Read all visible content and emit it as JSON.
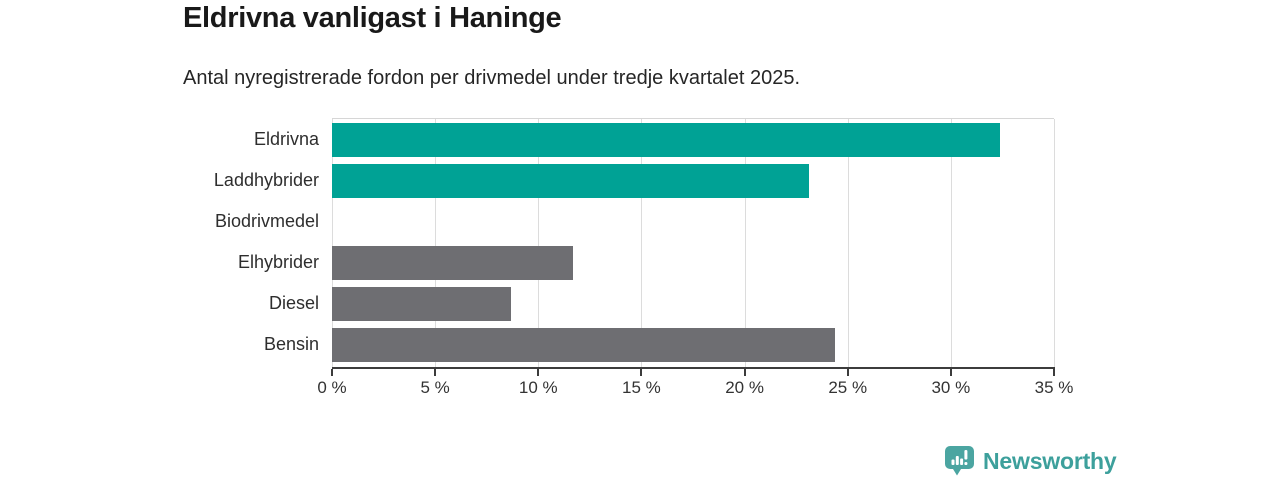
{
  "header": {
    "title": "Eldrivna vanligast i Haninge",
    "subtitle": "Antal nyregistrerade fordon per drivmedel under tredje kvartalet 2025."
  },
  "chart_data": {
    "type": "bar",
    "orientation": "horizontal",
    "title": "Eldrivna vanligast i Haninge",
    "subtitle": "Antal nyregistrerade fordon per drivmedel under tredje kvartalet 2025.",
    "categories": [
      "Eldrivna",
      "Laddhybrider",
      "Biodrivmedel",
      "Elhybrider",
      "Diesel",
      "Bensin"
    ],
    "values": [
      32.4,
      23.1,
      0,
      11.7,
      8.7,
      24.4
    ],
    "unit": "%",
    "bar_colors": [
      "#00a295",
      "#00a295",
      "#00a295",
      "#6e6e72",
      "#6e6e72",
      "#6e6e72"
    ],
    "xlim": [
      0,
      35
    ],
    "x_ticks": [
      0,
      5,
      10,
      15,
      20,
      25,
      30,
      35
    ],
    "x_tick_labels": [
      "0 %",
      "5 %",
      "10 %",
      "15 %",
      "20 %",
      "25 %",
      "30 %",
      "35 %"
    ],
    "xlabel": "",
    "ylabel": "",
    "grid": "vertical-gridlines",
    "legend": "none"
  },
  "branding": {
    "wordmark": "Newsworthy",
    "icon": "speech-bubble-with-bar-chart-and-exclamation",
    "icon_color": "#4ba5a1",
    "wordmark_color": "#3da09c"
  },
  "style": {
    "teal": "#00a295",
    "gray": "#6e6e72",
    "gridline_color": "#dcdcdc",
    "axis_line_color": "#3c3c3c",
    "background": "#ffffff"
  }
}
